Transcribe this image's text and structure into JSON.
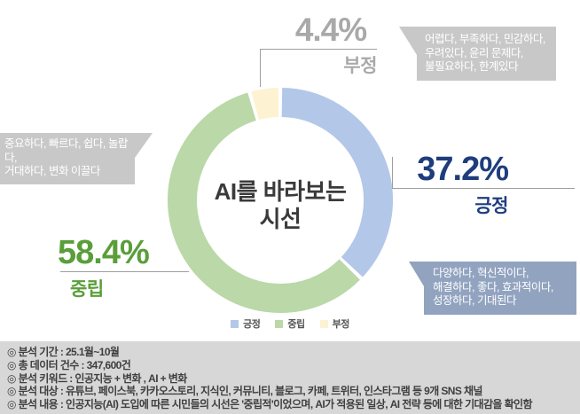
{
  "chart_data": {
    "type": "pie",
    "variant": "donut",
    "title": "AI를 바라보는 시선",
    "center_label": {
      "line1": "AI를 바라보는",
      "line2": "시선"
    },
    "unit": "%",
    "slices": [
      {
        "id": "positive",
        "label": "긍정",
        "value": 37.2,
        "pct_label": "37.2%",
        "color": "#b3c7e8",
        "label_color": "#1f3d7d"
      },
      {
        "id": "neutral",
        "label": "중립",
        "value": 58.4,
        "pct_label": "58.4%",
        "color": "#bad8a8",
        "label_color": "#5a9e3a"
      },
      {
        "id": "negative",
        "label": "부정",
        "value": 4.4,
        "pct_label": "4.4%",
        "color": "#fdf2d2",
        "label_color": "#a9a9a9"
      }
    ],
    "legend_position": "bottom-center",
    "legend": [
      "긍정",
      "중립",
      "부정"
    ]
  },
  "callouts": {
    "negative": {
      "bg_color": "#c8c8c8",
      "lines": [
        "어렵다, 부족하다, 민감하다,",
        "우려있다, 윤리 문제다,",
        "불필요하다, 한계있다"
      ]
    },
    "neutral": {
      "bg_color": "#c8c8c8",
      "lines": [
        "중요하다, 빠르다, 쉽다, 놀랍다,",
        "거대하다, 변화 이끌다"
      ]
    },
    "positive": {
      "bg_color": "#91a3bf",
      "lines": [
        "다양하다, 혁신적이다,",
        "해결하다, 좋다, 효과적이다,",
        "성장하다, 기대된다"
      ]
    }
  },
  "info_panel": {
    "bg_color": "#d7d7d7",
    "lines": [
      "◎ 분석 기간 : 25.1월~10월",
      "◎ 총 데이터 건수 : 347,600건",
      "◎ 분석 키워드 : 인공지능 + 변화 , AI + 변화",
      "◎ 분석 대상 : 유튜브, 페이스북, 카카오스토리, 지식인, 커뮤니티, 블로그, 카페, 트위터, 인스타그램 등 9개 SNS 채널",
      "◎ 분석 내용 : 인공지능(AI) 도입에 따른 시민들의 시선은 '중립적'이었으며, AI가 적용된 일상, AI 전략 등에 대한 기대감을 확인함"
    ]
  }
}
